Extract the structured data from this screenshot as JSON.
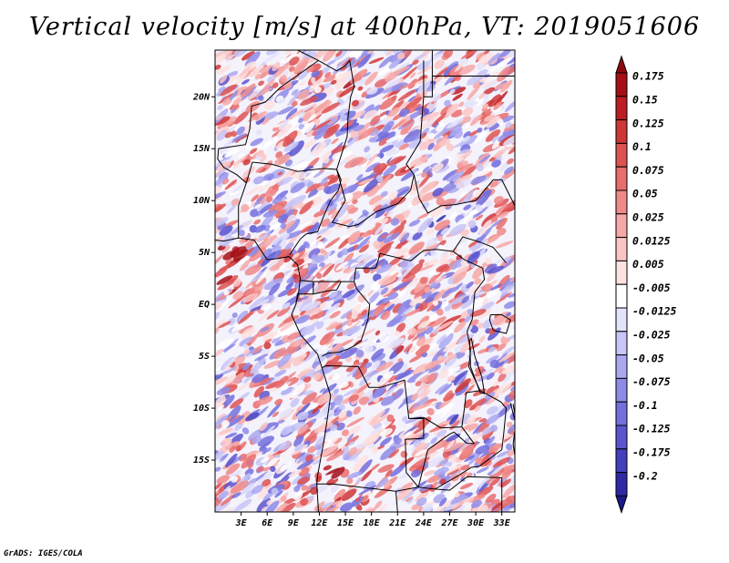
{
  "title": "Vertical velocity [m/s] at 400hPa, VT: 2019051606",
  "footer": "GrADS: IGES/COLA",
  "colors": {
    "positive": "#b2182b",
    "negative": "#2c2a9c",
    "land_border": "#000000"
  },
  "map": {
    "lon_range": [
      0,
      34.5
    ],
    "lat_range": [
      -20,
      24.5
    ],
    "lat_ticks": [
      {
        "value": 20,
        "label": "20N"
      },
      {
        "value": 15,
        "label": "15N"
      },
      {
        "value": 10,
        "label": "10N"
      },
      {
        "value": 5,
        "label": "5N"
      },
      {
        "value": 0,
        "label": "EQ"
      },
      {
        "value": -5,
        "label": "5S"
      },
      {
        "value": -10,
        "label": "10S"
      },
      {
        "value": -15,
        "label": "15S"
      }
    ],
    "lon_ticks": [
      {
        "value": 3,
        "label": "3E"
      },
      {
        "value": 6,
        "label": "6E"
      },
      {
        "value": 9,
        "label": "9E"
      },
      {
        "value": 12,
        "label": "12E"
      },
      {
        "value": 15,
        "label": "15E"
      },
      {
        "value": 18,
        "label": "18E"
      },
      {
        "value": 21,
        "label": "21E"
      },
      {
        "value": 24,
        "label": "24E"
      },
      {
        "value": 27,
        "label": "27E"
      },
      {
        "value": 30,
        "label": "30E"
      },
      {
        "value": 33,
        "label": "33E"
      }
    ]
  },
  "colorbar": {
    "levels": [
      {
        "label": "0.175",
        "color": "#a50f15"
      },
      {
        "label": "0.15",
        "color": "#bc1c24"
      },
      {
        "label": "0.125",
        "color": "#cf3636"
      },
      {
        "label": "0.1",
        "color": "#de5252"
      },
      {
        "label": "0.075",
        "color": "#e86d6d"
      },
      {
        "label": "0.05",
        "color": "#f08a88"
      },
      {
        "label": "0.025",
        "color": "#f6a8a6"
      },
      {
        "label": "0.0125",
        "color": "#fac6c4"
      },
      {
        "label": "0.005",
        "color": "#fde2e1"
      },
      {
        "label": "-0.005",
        "color": "#ffffff"
      },
      {
        "label": "-0.0125",
        "color": "#e3e3fb"
      },
      {
        "label": "-0.025",
        "color": "#c7c6f6"
      },
      {
        "label": "-0.05",
        "color": "#aaa8f0"
      },
      {
        "label": "-0.075",
        "color": "#8e8be8"
      },
      {
        "label": "-0.1",
        "color": "#736fdd"
      },
      {
        "label": "-0.125",
        "color": "#5a55cf"
      },
      {
        "label": "-0.175",
        "color": "#4340bd"
      },
      {
        "label": "-0.2",
        "color": "#2e2aa5"
      }
    ],
    "top_cap_color": "#8e0a10",
    "bottom_cap_color": "#1d1a8c"
  }
}
